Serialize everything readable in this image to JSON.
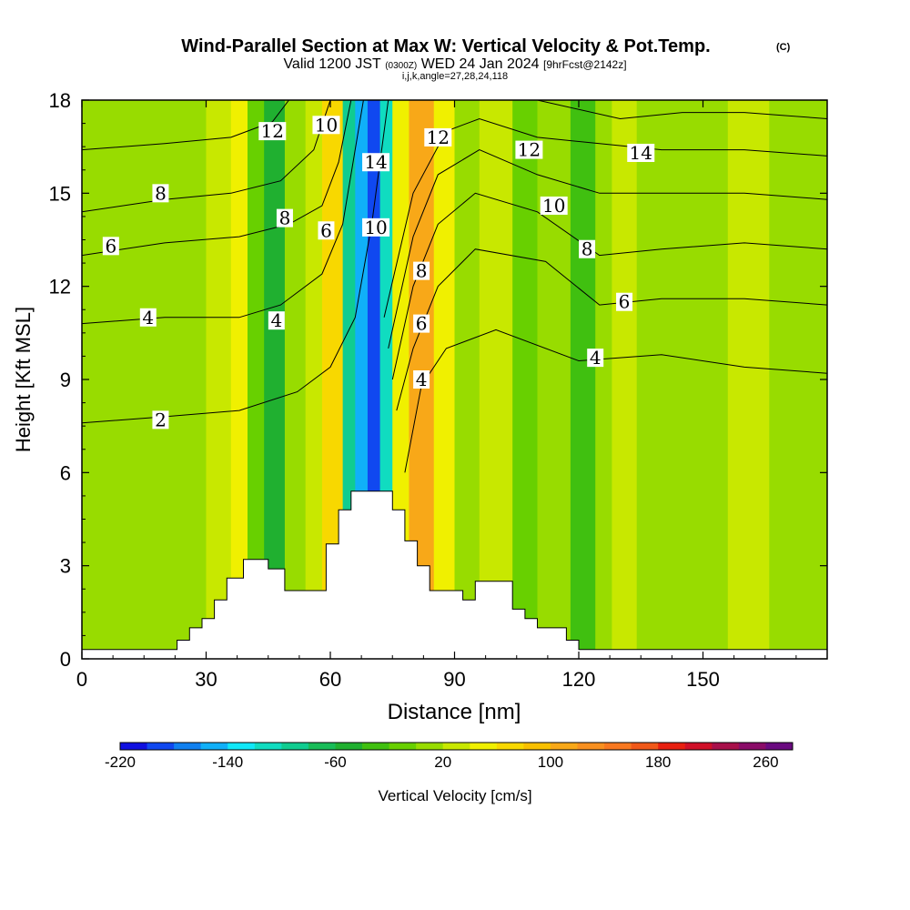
{
  "title": {
    "main": "Wind-Parallel Section at Max W: Vertical Velocity & Pot.Temp.",
    "copyright": "(C)",
    "valid_a": "Valid 1200 JST",
    "valid_z": "(0300Z)",
    "valid_b": "WED 24 Jan 2024",
    "fcst": "[9hrFcst@2142z]",
    "indices": "i,j,k,angle=27,28,24,118"
  },
  "chart_data": {
    "type": "heatmap",
    "xlabel": "Distance [nm]",
    "ylabel": "Height [Kft MSL]",
    "xlim": [
      0,
      180
    ],
    "ylim": [
      0,
      18
    ],
    "x_ticks": [
      0,
      30,
      60,
      90,
      120,
      150
    ],
    "y_ticks": [
      0,
      3,
      6,
      9,
      12,
      15,
      18
    ],
    "colorbar": {
      "label": "Vertical Velocity [cm/s]",
      "tick_values": [
        -220,
        -140,
        -60,
        20,
        100,
        180,
        260
      ],
      "tick_labels": [
        "-220",
        "-140",
        "-60",
        "20",
        "100",
        "180",
        "260"
      ],
      "bin_edges": [
        -220,
        -200,
        -180,
        -160,
        -140,
        -120,
        -100,
        -80,
        -60,
        -40,
        -20,
        0,
        20,
        40,
        60,
        80,
        100,
        120,
        140,
        160,
        180,
        200,
        220,
        240,
        260,
        280
      ],
      "colors": [
        "#1010e0",
        "#1048f0",
        "#1080f0",
        "#10b0f8",
        "#10e8f8",
        "#10dcc0",
        "#10cc90",
        "#18bc58",
        "#20b030",
        "#40c010",
        "#68d000",
        "#98dc00",
        "#c8e800",
        "#f0f000",
        "#f8d800",
        "#f8c000",
        "#f8a818",
        "#f89020",
        "#f87820",
        "#f05818",
        "#e82010",
        "#d01028",
        "#a8104a",
        "#8a0c68",
        "#6a0a80"
      ]
    },
    "vertical_velocity_columns": [
      {
        "from": 0,
        "to": 4,
        "w": 0
      },
      {
        "from": 4,
        "to": 14,
        "w": 10
      },
      {
        "from": 14,
        "to": 22,
        "w": 0
      },
      {
        "from": 22,
        "to": 30,
        "w": 10
      },
      {
        "from": 30,
        "to": 36,
        "w": 30
      },
      {
        "from": 36,
        "to": 40,
        "w": 50
      },
      {
        "from": 40,
        "to": 44,
        "w": -20
      },
      {
        "from": 44,
        "to": 49,
        "w": -60
      },
      {
        "from": 49,
        "to": 54,
        "w": 10
      },
      {
        "from": 54,
        "to": 58,
        "w": 30
      },
      {
        "from": 58,
        "to": 63,
        "w": 60
      },
      {
        "from": 63,
        "to": 66,
        "w": -100
      },
      {
        "from": 66,
        "to": 69,
        "w": -160
      },
      {
        "from": 69,
        "to": 72,
        "w": -200
      },
      {
        "from": 72,
        "to": 75,
        "w": -120
      },
      {
        "from": 75,
        "to": 79,
        "w": 50
      },
      {
        "from": 79,
        "to": 85,
        "w": 110
      },
      {
        "from": 85,
        "to": 90,
        "w": 50
      },
      {
        "from": 90,
        "to": 96,
        "w": 10
      },
      {
        "from": 96,
        "to": 104,
        "w": 30
      },
      {
        "from": 104,
        "to": 110,
        "w": -10
      },
      {
        "from": 110,
        "to": 118,
        "w": 0
      },
      {
        "from": 118,
        "to": 124,
        "w": -40
      },
      {
        "from": 124,
        "to": 128,
        "w": 10
      },
      {
        "from": 128,
        "to": 134,
        "w": 30
      },
      {
        "from": 134,
        "to": 140,
        "w": 10
      },
      {
        "from": 140,
        "to": 145,
        "w": 0
      },
      {
        "from": 145,
        "to": 156,
        "w": 10
      },
      {
        "from": 156,
        "to": 166,
        "w": 20
      },
      {
        "from": 166,
        "to": 180,
        "w": 0
      }
    ],
    "terrain": [
      [
        0,
        0.3
      ],
      [
        23,
        0.3
      ],
      [
        23,
        0.6
      ],
      [
        26,
        0.6
      ],
      [
        26,
        1.0
      ],
      [
        29,
        1.0
      ],
      [
        29,
        1.3
      ],
      [
        32,
        1.3
      ],
      [
        32,
        1.9
      ],
      [
        35,
        1.9
      ],
      [
        35,
        2.6
      ],
      [
        39,
        2.6
      ],
      [
        39,
        3.2
      ],
      [
        45,
        3.2
      ],
      [
        45,
        2.9
      ],
      [
        49,
        2.9
      ],
      [
        49,
        2.2
      ],
      [
        59,
        2.2
      ],
      [
        59,
        3.7
      ],
      [
        62,
        3.7
      ],
      [
        62,
        4.8
      ],
      [
        65,
        4.8
      ],
      [
        65,
        5.4
      ],
      [
        75,
        5.4
      ],
      [
        75,
        4.8
      ],
      [
        78,
        4.8
      ],
      [
        78,
        3.8
      ],
      [
        81,
        3.8
      ],
      [
        81,
        3.0
      ],
      [
        84,
        3.0
      ],
      [
        84,
        2.2
      ],
      [
        92,
        2.2
      ],
      [
        92,
        1.9
      ],
      [
        95,
        1.9
      ],
      [
        95,
        2.5
      ],
      [
        104,
        2.5
      ],
      [
        104,
        1.6
      ],
      [
        107,
        1.6
      ],
      [
        107,
        1.3
      ],
      [
        110,
        1.3
      ],
      [
        110,
        1.0
      ],
      [
        117,
        1.0
      ],
      [
        117,
        0.6
      ],
      [
        120,
        0.6
      ],
      [
        120,
        0.3
      ],
      [
        180,
        0.3
      ],
      [
        180,
        0
      ],
      [
        0,
        0
      ]
    ],
    "potential_temperature_contours": [
      {
        "level": "2",
        "points": [
          [
            0,
            7.6
          ],
          [
            20,
            7.8
          ],
          [
            38,
            8.0
          ],
          [
            52,
            8.6
          ],
          [
            60,
            9.4
          ],
          [
            66,
            11.0
          ],
          [
            70,
            14.0
          ],
          [
            74,
            18.0
          ]
        ]
      },
      {
        "level": "4",
        "points": [
          [
            0,
            10.8
          ],
          [
            20,
            11.0
          ],
          [
            38,
            11.0
          ],
          [
            48,
            11.4
          ],
          [
            58,
            12.4
          ],
          [
            63,
            14.0
          ],
          [
            68,
            18.0
          ]
        ]
      },
      {
        "level": "6",
        "points": [
          [
            0,
            13.0
          ],
          [
            20,
            13.4
          ],
          [
            38,
            13.6
          ],
          [
            50,
            14.0
          ],
          [
            58,
            14.6
          ],
          [
            62,
            16.0
          ],
          [
            65,
            18.0
          ]
        ]
      },
      {
        "level": "8",
        "points": [
          [
            0,
            14.4
          ],
          [
            20,
            14.8
          ],
          [
            36,
            15.0
          ],
          [
            48,
            15.4
          ],
          [
            56,
            16.4
          ],
          [
            60,
            18.0
          ]
        ]
      },
      {
        "level": "12",
        "points": [
          [
            0,
            16.4
          ],
          [
            20,
            16.6
          ],
          [
            36,
            16.8
          ],
          [
            46,
            17.3
          ],
          [
            50,
            18.0
          ]
        ]
      },
      {
        "level": "4",
        "points": [
          [
            180,
            9.2
          ],
          [
            160,
            9.4
          ],
          [
            140,
            9.8
          ],
          [
            120,
            9.6
          ],
          [
            100,
            10.6
          ],
          [
            88,
            10.0
          ],
          [
            82,
            8.8
          ],
          [
            78,
            6.0
          ]
        ]
      },
      {
        "level": "6",
        "points": [
          [
            180,
            11.4
          ],
          [
            160,
            11.6
          ],
          [
            140,
            11.6
          ],
          [
            125,
            11.4
          ],
          [
            112,
            12.8
          ],
          [
            95,
            13.2
          ],
          [
            86,
            12.0
          ],
          [
            80,
            10.0
          ],
          [
            76,
            8.0
          ]
        ]
      },
      {
        "level": "8",
        "points": [
          [
            180,
            13.2
          ],
          [
            160,
            13.4
          ],
          [
            140,
            13.2
          ],
          [
            125,
            13.0
          ],
          [
            110,
            14.4
          ],
          [
            95,
            15.0
          ],
          [
            86,
            14.0
          ],
          [
            80,
            12.0
          ],
          [
            75,
            9.0
          ]
        ]
      },
      {
        "level": "10",
        "points": [
          [
            180,
            14.8
          ],
          [
            160,
            15.0
          ],
          [
            140,
            15.0
          ],
          [
            125,
            15.0
          ],
          [
            110,
            15.6
          ],
          [
            96,
            16.4
          ],
          [
            86,
            15.6
          ],
          [
            80,
            13.6
          ],
          [
            74,
            10.0
          ]
        ]
      },
      {
        "level": "12",
        "points": [
          [
            180,
            16.2
          ],
          [
            160,
            16.4
          ],
          [
            140,
            16.4
          ],
          [
            125,
            16.6
          ],
          [
            110,
            16.8
          ],
          [
            96,
            17.4
          ],
          [
            88,
            17.0
          ],
          [
            80,
            15.0
          ],
          [
            73,
            11.0
          ]
        ]
      },
      {
        "level": "14",
        "points": [
          [
            180,
            17.4
          ],
          [
            160,
            17.6
          ],
          [
            145,
            17.6
          ],
          [
            130,
            17.4
          ],
          [
            110,
            18.0
          ]
        ]
      }
    ],
    "contour_labels": [
      {
        "text": "2",
        "x": 19,
        "y": 7.7
      },
      {
        "text": "4",
        "x": 16,
        "y": 11.0
      },
      {
        "text": "6",
        "x": 7,
        "y": 13.3
      },
      {
        "text": "8",
        "x": 19,
        "y": 15.0
      },
      {
        "text": "12",
        "x": 46,
        "y": 17.0
      },
      {
        "text": "10",
        "x": 59,
        "y": 17.2
      },
      {
        "text": "8",
        "x": 49,
        "y": 14.2
      },
      {
        "text": "6",
        "x": 59,
        "y": 13.8
      },
      {
        "text": "4",
        "x": 47,
        "y": 10.9
      },
      {
        "text": "14",
        "x": 71,
        "y": 16.0
      },
      {
        "text": "10",
        "x": 71,
        "y": 13.9
      },
      {
        "text": "12",
        "x": 86,
        "y": 16.8
      },
      {
        "text": "8",
        "x": 82,
        "y": 12.5
      },
      {
        "text": "6",
        "x": 82,
        "y": 10.8
      },
      {
        "text": "4",
        "x": 82,
        "y": 9.0
      },
      {
        "text": "12",
        "x": 108,
        "y": 16.4
      },
      {
        "text": "10",
        "x": 114,
        "y": 14.6
      },
      {
        "text": "8",
        "x": 122,
        "y": 13.2
      },
      {
        "text": "6",
        "x": 131,
        "y": 11.5
      },
      {
        "text": "4",
        "x": 124,
        "y": 9.7
      },
      {
        "text": "14",
        "x": 135,
        "y": 16.3
      }
    ]
  }
}
